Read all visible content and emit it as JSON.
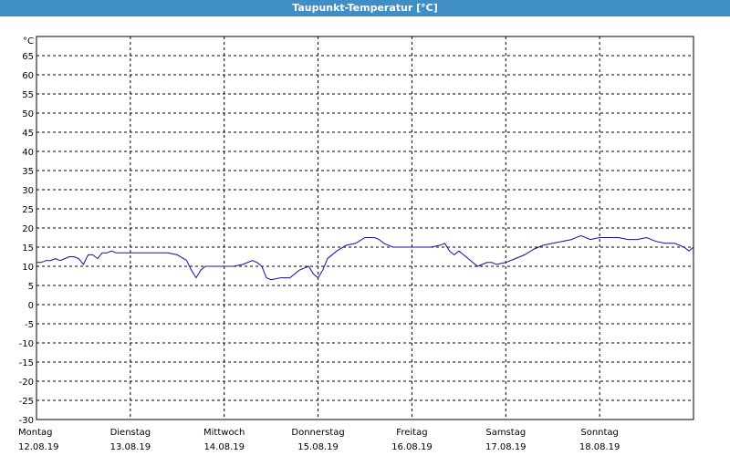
{
  "window": {
    "title": "Taupunkt-Temperatur [°C]"
  },
  "chart_data": {
    "type": "line",
    "title": "Taupunkt-Temperatur [°C]",
    "unit": "°C",
    "ylim": [
      -30,
      70
    ],
    "yticks": [
      65,
      60,
      55,
      50,
      45,
      40,
      35,
      30,
      25,
      20,
      15,
      10,
      5,
      0,
      -5,
      -10,
      -15,
      -20,
      -25,
      -30
    ],
    "grid": true,
    "line_color": "#1010a0",
    "days": [
      {
        "weekday": "Montag",
        "date": "12.08.19"
      },
      {
        "weekday": "Dienstag",
        "date": "13.08.19"
      },
      {
        "weekday": "Mittwoch",
        "date": "14.08.19"
      },
      {
        "weekday": "Donnerstag",
        "date": "15.08.19"
      },
      {
        "weekday": "Freitag",
        "date": "16.08.19"
      },
      {
        "weekday": "Samstag",
        "date": "17.08.19"
      },
      {
        "weekday": "Sonntag",
        "date": "18.08.19"
      }
    ],
    "series": [
      {
        "days_elapsed": [
          0.0,
          0.05,
          0.1,
          0.15,
          0.2,
          0.25,
          0.3,
          0.35,
          0.4,
          0.45,
          0.5,
          0.55,
          0.6,
          0.65,
          0.7,
          0.75,
          0.8,
          0.85,
          0.9,
          0.95,
          1.0,
          1.1,
          1.2,
          1.3,
          1.4,
          1.5,
          1.6,
          1.65,
          1.7,
          1.75,
          1.8,
          1.85,
          1.9,
          1.95,
          2.0,
          2.1,
          2.2,
          2.3,
          2.35,
          2.4,
          2.45,
          2.5,
          2.6,
          2.7,
          2.8,
          2.9,
          2.95,
          3.0,
          3.05,
          3.1,
          3.2,
          3.3,
          3.4,
          3.5,
          3.6,
          3.65,
          3.7,
          3.8,
          3.9,
          4.0,
          4.1,
          4.2,
          4.3,
          4.35,
          4.4,
          4.45,
          4.5,
          4.6,
          4.7,
          4.8,
          4.85,
          4.9,
          5.0,
          5.1,
          5.2,
          5.3,
          5.4,
          5.5,
          5.6,
          5.7,
          5.8,
          5.9,
          6.0,
          6.1,
          6.2,
          6.3,
          6.4,
          6.5,
          6.6,
          6.7,
          6.8,
          6.9,
          6.95,
          7.0
        ],
        "values": [
          11,
          11,
          11.5,
          11.5,
          12,
          11.5,
          12,
          12.5,
          12.5,
          12,
          10.5,
          13,
          13,
          12,
          13.5,
          13.5,
          14,
          13.5,
          13.5,
          13.5,
          13.5,
          13.5,
          13.5,
          13.5,
          13.5,
          13,
          11.5,
          9,
          7,
          9,
          10,
          10,
          10,
          10,
          10,
          10,
          10.5,
          11.5,
          11,
          10,
          7,
          6.5,
          7,
          7,
          9,
          10,
          8,
          7,
          9,
          12,
          14,
          15.5,
          16,
          17.5,
          17.5,
          17,
          16,
          15,
          15,
          15,
          15,
          15,
          15.5,
          16,
          14,
          13,
          14,
          12,
          10,
          11,
          11,
          10.5,
          11,
          12,
          13,
          14.5,
          15.5,
          16,
          16.5,
          17,
          18,
          17,
          17.5,
          17.5,
          17.5,
          17,
          17,
          17.5,
          16.5,
          16,
          16,
          15,
          14,
          15
        ]
      }
    ]
  }
}
